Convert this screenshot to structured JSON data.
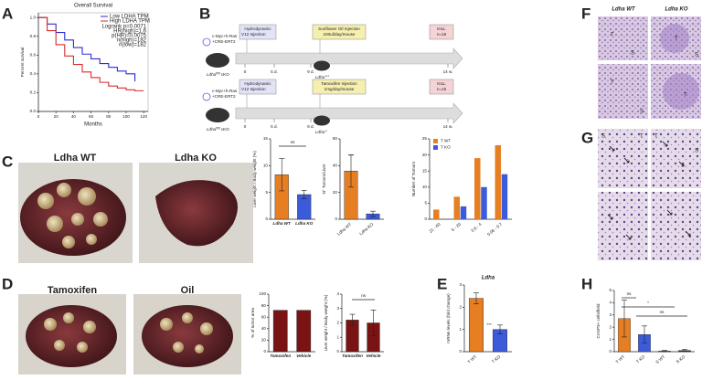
{
  "panel_labels": [
    "A",
    "B",
    "C",
    "D",
    "E",
    "F",
    "G",
    "H"
  ],
  "chart_data": [
    {
      "type": "line",
      "title": "Overall Survival",
      "x_label": "Months",
      "y_label": "Percent survival",
      "x": [
        0,
        10,
        20,
        30,
        40,
        50,
        60,
        70,
        80,
        90,
        100,
        110,
        120
      ],
      "series": [
        {
          "name": "Low LDHA TPM",
          "color": "#2b2bd9",
          "values": [
            1,
            0.93,
            0.84,
            0.76,
            0.68,
            0.61,
            0.56,
            0.51,
            0.47,
            0.43,
            0.4,
            0.32,
            null
          ]
        },
        {
          "name": "High LDHA TPM",
          "color": "#d92b2b",
          "values": [
            1,
            0.86,
            0.71,
            0.59,
            0.5,
            0.42,
            0.36,
            0.31,
            0.27,
            0.25,
            0.23,
            0.22,
            0.22
          ]
        }
      ],
      "xlim": [
        0,
        125
      ],
      "xticks": [
        0,
        20,
        40,
        60,
        80,
        100,
        120
      ],
      "ylim": [
        0,
        1.05
      ],
      "yticks": [
        {
          "value": 0,
          "label": "0.0"
        },
        0.2,
        0.4,
        0.6,
        0.8,
        {
          "value": 1,
          "label": "1.0"
        }
      ],
      "annotations": [
        "Logrank p=0.0071",
        "HR(high)=1.6",
        "p(HR)=0.0075",
        "n(high)=182",
        "n(low)=182"
      ]
    },
    {
      "type": "bar",
      "y_label": "Liver weight / Body weight (%)",
      "categories": [
        "Ldha WT",
        "Ldha KO"
      ],
      "values": [
        8.3,
        4.6
      ],
      "errors": [
        3,
        0.8
      ],
      "colors": [
        "#e67e22",
        "#3b5bdb"
      ],
      "ylim": [
        0,
        15
      ],
      "yticks": [
        0,
        5,
        10,
        15
      ],
      "annotations": [
        "ns"
      ]
    },
    {
      "type": "bar",
      "y_label": "N° Tumors/Liver",
      "categories": [
        "Ldha WT",
        "Ldha KO"
      ],
      "values": [
        36,
        4
      ],
      "errors": [
        12,
        2
      ],
      "colors": [
        "#e67e22",
        "#3b5bdb"
      ],
      "ylim": [
        0,
        60
      ],
      "yticks": [
        0,
        20,
        40,
        60
      ],
      "annotations": [
        "***"
      ]
    },
    {
      "type": "bar",
      "y_label": "Number of Tumors",
      "categories": [
        "21 - 60",
        "5 - 20",
        "0.6 - 4",
        "0.06 - 0.7"
      ],
      "series": [
        {
          "name": "T WT",
          "color": "#e67e22",
          "values": [
            3,
            7,
            19,
            23
          ]
        },
        {
          "name": "T KO",
          "color": "#3b5bdb",
          "values": [
            0,
            4,
            10,
            14
          ]
        }
      ],
      "ylim": [
        0,
        25
      ],
      "yticks": [
        0,
        5,
        10,
        15,
        20,
        25
      ]
    },
    {
      "type": "bar",
      "y_label": "% of tumor area",
      "categories": [
        "Tamoxifen",
        "Vehicle"
      ],
      "values": [
        72,
        72
      ],
      "colors": [
        "#7a1414",
        "#7a1414"
      ],
      "ylim": [
        0,
        100
      ],
      "yticks": [
        0,
        20,
        40,
        60,
        80,
        100
      ]
    },
    {
      "type": "bar",
      "y_label": "Liver weight / Body weight (%)",
      "categories": [
        "Tamoxifen",
        "Vehicle"
      ],
      "values": [
        2.2,
        2.0
      ],
      "errors": [
        0.4,
        0.9
      ],
      "colors": [
        "#7a1414",
        "#7a1414"
      ],
      "ylim": [
        0,
        4
      ],
      "yticks": [
        0,
        1,
        2,
        3,
        4
      ],
      "annotations": [
        "ns"
      ]
    },
    {
      "type": "bar",
      "title": "Ldha",
      "y_label": "mRNA levels (fold change)",
      "categories": [
        "T WT",
        "T KO"
      ],
      "values": [
        2.4,
        1.0
      ],
      "errors": [
        0.25,
        0.2
      ],
      "colors": [
        "#e67e22",
        "#3b5bdb"
      ],
      "ylim": [
        0,
        3
      ],
      "yticks": [
        0,
        1,
        2,
        3
      ],
      "annotations": [
        "***"
      ]
    },
    {
      "type": "bar",
      "y_label": "CASP3+ cells/field",
      "categories": [
        "T WT",
        "T KO",
        "S WT",
        "S KO"
      ],
      "values": [
        2.7,
        1.4,
        0.05,
        0.1
      ],
      "errors": [
        1.5,
        0.7,
        0.05,
        0.08
      ],
      "colors": [
        "#e67e22",
        "#3b5bdb",
        "#c0392b",
        "#333333"
      ],
      "ylim": [
        0,
        5
      ],
      "yticks": [
        0,
        1,
        2,
        3,
        4,
        5
      ],
      "annotations": [
        "ns",
        "*",
        "ns"
      ]
    }
  ],
  "timeline": {
    "plasmids": [
      "c-Myc+h-Ras",
      "V12",
      "+CRE-ERT2"
    ],
    "mouse": {
      "gene": "Ldha",
      "sup": "fl/fl",
      "suffix": "cKO"
    },
    "timepoints": [
      "0",
      "5 d.",
      "9 d.",
      "14 w."
    ],
    "rows": [
      {
        "injection": [
          "Hydrodynamic",
          "Injection"
        ],
        "treatment": [
          "Sunflower Oil Injection",
          "100ul/day/mouse"
        ],
        "kill": [
          "KILL",
          "n=16"
        ],
        "result": {
          "gene": "Ldha",
          "sup": "+/+"
        }
      },
      {
        "injection": [
          "Hydrodynamic",
          "Injection"
        ],
        "treatment": [
          "Tamoxifen Injection",
          "1mg/day/mouse"
        ],
        "kill": [
          "KILL",
          "n=16"
        ],
        "result": {
          "gene": "Ldha",
          "sup": "-/-"
        }
      }
    ]
  },
  "photos": {
    "C": [
      "Ldha WT",
      "Ldha KO"
    ],
    "D": [
      "Tamoxifen",
      "Oil"
    ]
  },
  "histology": {
    "headers": [
      "Ldha WT",
      "Ldha KO"
    ],
    "F_regions": [
      "T",
      "S",
      "T",
      "T",
      "S",
      "T",
      "S"
    ],
    "G_regions": [
      "S",
      "T",
      "T",
      "S"
    ]
  }
}
